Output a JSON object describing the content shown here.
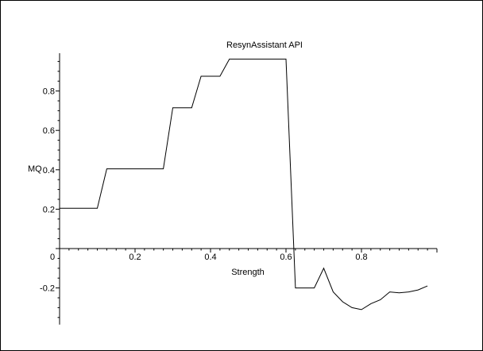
{
  "chart_data": {
    "type": "line",
    "title": "ResynAssistant API",
    "xlabel": "Strength",
    "ylabel": "MQ",
    "xlim": [
      0,
      1.0
    ],
    "ylim": [
      -0.37,
      0.98
    ],
    "x_ticks": [
      0,
      0.2,
      0.4,
      0.6,
      0.8
    ],
    "x_tick_labels": [
      "0",
      "0.2",
      "0.4",
      "0.6",
      "0.8"
    ],
    "y_ticks": [
      -0.2,
      0,
      0.2,
      0.4,
      0.6,
      0.8
    ],
    "y_tick_labels": [
      "-0.2",
      "0",
      "0.2",
      "0.4",
      "0.6",
      "0.8"
    ],
    "grid": false,
    "color": "#000000",
    "series": [
      {
        "x": [
          0.0,
          0.1,
          0.125,
          0.275,
          0.3,
          0.35,
          0.375,
          0.425,
          0.45,
          0.6,
          0.625,
          0.675,
          0.7,
          0.725,
          0.75,
          0.775,
          0.8,
          0.825,
          0.85,
          0.875,
          0.9,
          0.925,
          0.95,
          0.975
        ],
        "y": [
          0.205,
          0.205,
          0.405,
          0.405,
          0.715,
          0.715,
          0.875,
          0.875,
          0.962,
          0.962,
          -0.2,
          -0.2,
          -0.1,
          -0.22,
          -0.27,
          -0.3,
          -0.31,
          -0.28,
          -0.26,
          -0.22,
          -0.225,
          -0.22,
          -0.21,
          -0.19
        ]
      }
    ]
  }
}
